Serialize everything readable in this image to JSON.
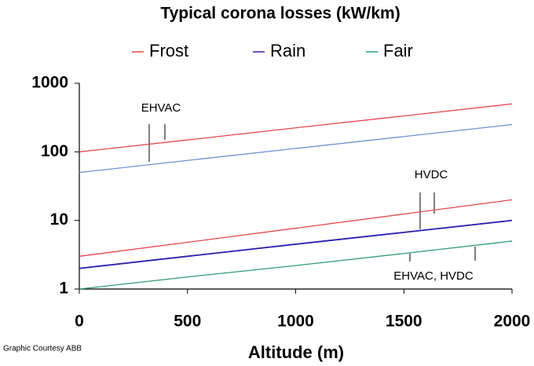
{
  "chart_data": {
    "type": "line",
    "title": "Typical corona losses (kW/km)",
    "x_label": "Altitude (m)",
    "x": [
      0,
      500,
      1000,
      1500,
      2000
    ],
    "series": [
      {
        "name": "Frost",
        "color": "#e8474a",
        "values": [
          3,
          4.8,
          7.7,
          12.4,
          20
        ]
      },
      {
        "name": "Rain",
        "color": "#2a1fb0",
        "values": [
          2,
          3,
          4.5,
          6.7,
          10
        ]
      },
      {
        "name": "Fair",
        "color": "#2e9e6e",
        "values": [
          1,
          1.5,
          2.2,
          3.3,
          5
        ]
      },
      {
        "name": "Frost",
        "color": "#e8474a",
        "values": [
          100,
          149,
          224,
          334,
          500
        ]
      },
      {
        "name": "Rain",
        "color": "#6f93d8",
        "values": [
          50,
          75,
          112,
          167,
          250
        ]
      }
    ],
    "annotations": [
      "EHVAC",
      "HVDC",
      "EHVAC, HVDC"
    ],
    "credit": "Graphic Courtesy ABB",
    "log_y": true,
    "xlim": [
      0,
      2000
    ],
    "ylim": [
      1,
      1000
    ],
    "xticks": [
      0,
      500,
      1000,
      1500,
      2000
    ],
    "yticks": [
      1,
      10,
      100,
      1000
    ],
    "grid": false
  }
}
